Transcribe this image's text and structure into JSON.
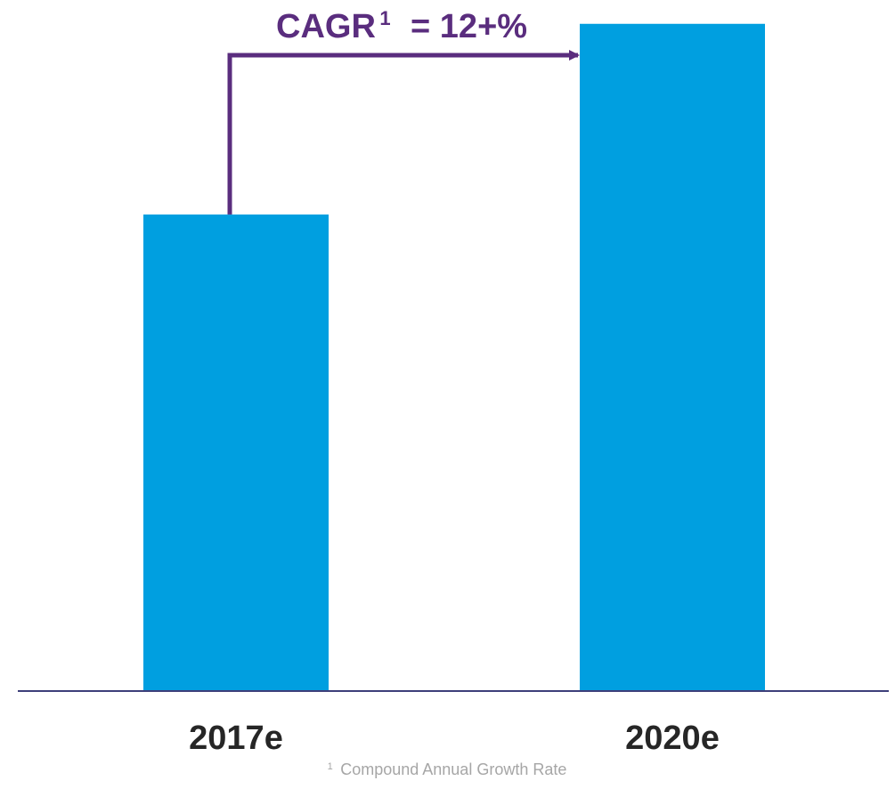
{
  "chart_data": {
    "type": "bar",
    "categories": [
      "2017e",
      "2020e"
    ],
    "values": [
      1.0,
      1.4
    ],
    "ylim": [
      0,
      1.45
    ],
    "axis_visible": false,
    "grid": false,
    "annotation": {
      "text": "CAGR",
      "superscript": "1",
      "value_text": "= 12+%",
      "from_category": "2017e",
      "to_category": "2020e"
    },
    "footnote": {
      "marker": "1",
      "text": "Compound Annual Growth Rate"
    }
  },
  "colors": {
    "bar": "#009fe0",
    "annotation": "#5a2d7e",
    "baseline": "#3d3f7a",
    "category_label": "#262626",
    "footnote": "#a6a6a6"
  }
}
